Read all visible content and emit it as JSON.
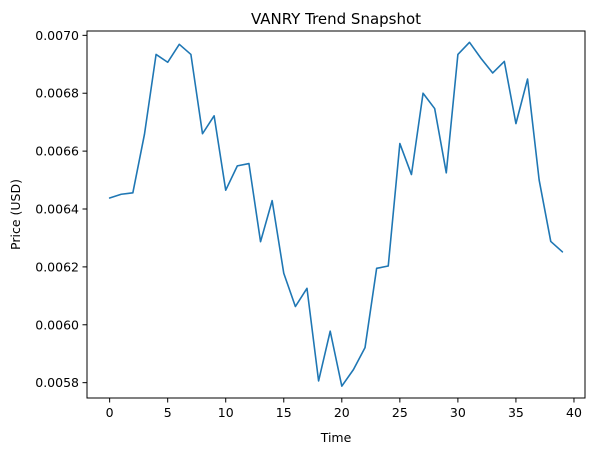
{
  "chart_data": {
    "type": "line",
    "title": "VANRY Trend Snapshot",
    "xlabel": "Time",
    "ylabel": "Price (USD)",
    "xlim": [
      -1.95,
      40.95
    ],
    "ylim": [
      0.005747,
      0.007015
    ],
    "xticks": [
      0,
      5,
      10,
      15,
      20,
      25,
      30,
      35,
      40
    ],
    "xtick_labels": [
      "0",
      "5",
      "10",
      "15",
      "20",
      "25",
      "30",
      "35",
      "40"
    ],
    "yticks": [
      0.0058,
      0.006,
      0.0062,
      0.0064,
      0.0066,
      0.0068,
      0.007
    ],
    "ytick_labels": [
      "0.0058",
      "0.0060",
      "0.0062",
      "0.0064",
      "0.0066",
      "0.0068",
      "0.0070"
    ],
    "grid": false,
    "series": [
      {
        "color": "#1f77b4",
        "x": [
          0,
          1,
          2,
          3,
          4,
          5,
          6,
          7,
          8,
          9,
          10,
          11,
          12,
          13,
          14,
          15,
          16,
          17,
          18,
          19,
          20,
          21,
          22,
          23,
          24,
          25,
          26,
          27,
          28,
          29,
          30,
          31,
          32,
          33,
          34,
          35,
          36,
          37,
          38,
          39
        ],
        "values": [
          0.006438,
          0.006451,
          0.006456,
          0.006658,
          0.006934,
          0.006907,
          0.006969,
          0.006934,
          0.00666,
          0.006722,
          0.006465,
          0.006549,
          0.006557,
          0.006287,
          0.006429,
          0.006178,
          0.006063,
          0.006126,
          0.005806,
          0.005978,
          0.005788,
          0.005845,
          0.005921,
          0.006195,
          0.006203,
          0.006626,
          0.006519,
          0.0068,
          0.006747,
          0.006525,
          0.006934,
          0.006976,
          0.00692,
          0.00687,
          0.00691,
          0.006695,
          0.006849,
          0.0065,
          0.006288,
          0.006252
        ]
      }
    ]
  }
}
